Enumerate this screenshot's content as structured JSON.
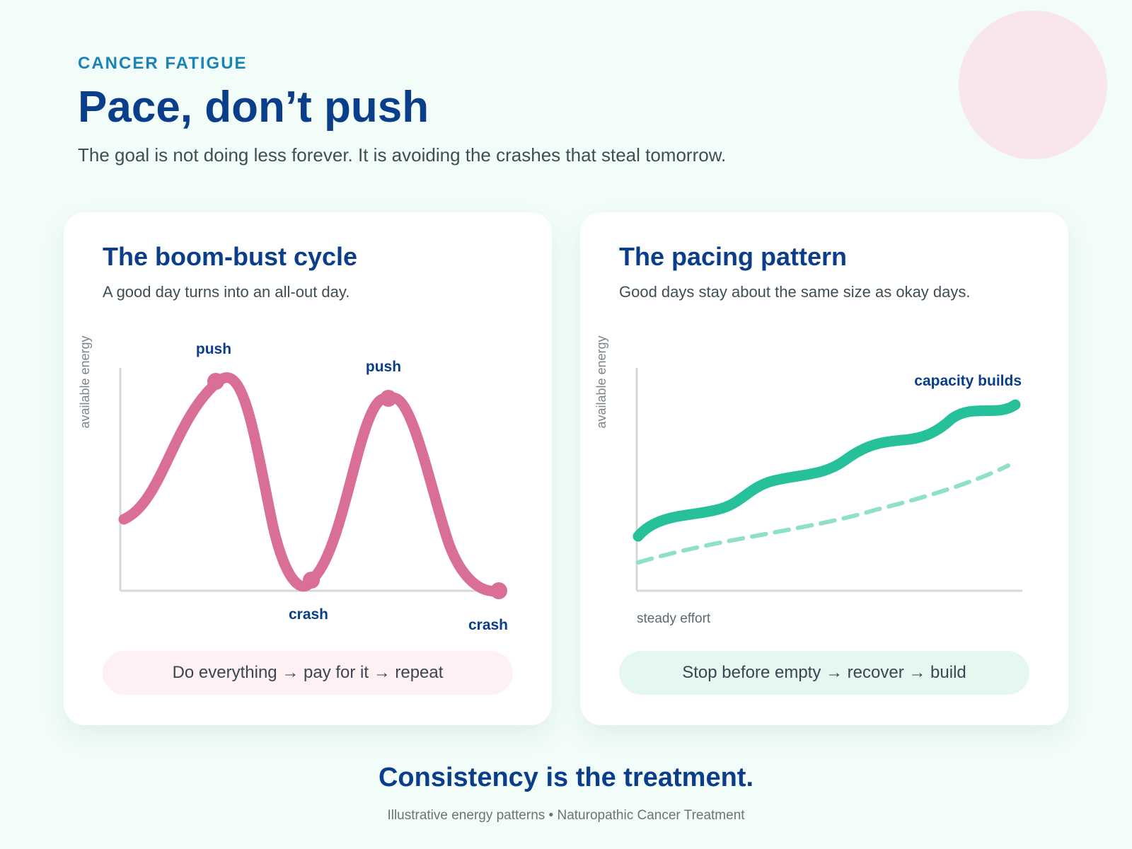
{
  "header": {
    "eyebrow": "CANCER FATIGUE",
    "title": "Pace, don’t push",
    "subtitle": "The goal is not doing less forever. It is avoiding the crashes that steal tomorrow."
  },
  "cards": [
    {
      "title": "The boom-bust cycle",
      "description": "A good day turns into an all-out day.",
      "y_axis_label": "available energy",
      "annotations": [
        "push",
        "crash",
        "push",
        "crash"
      ],
      "summary": "Do everything → pay for it → repeat"
    },
    {
      "title": "The pacing pattern",
      "description": "Good days stay about the same size as okay days.",
      "y_axis_label": "available energy",
      "x_axis_label": "steady effort",
      "annotation": "capacity builds",
      "summary": "Stop before empty → recover → build"
    }
  ],
  "footer": {
    "conclusion": "Consistency is the treatment.",
    "source": "Illustrative energy patterns • Naturopathic Cancer Treatment"
  },
  "colors": {
    "boom_bust_line": "#d96e96",
    "pacing_line": "#26c09a",
    "pacing_dashed": "#8fe0c8",
    "heading": "#0b3e8a",
    "eyebrow": "#1a84b8"
  }
}
